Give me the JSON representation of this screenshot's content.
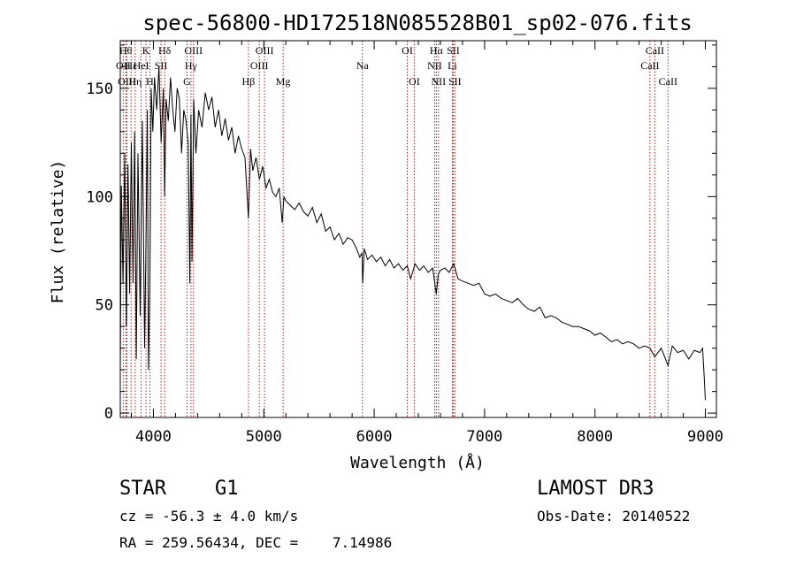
{
  "chart_data": {
    "type": "line",
    "title": "spec-56800-HD172518N085528B01_sp02-076.fits",
    "xlabel": "Wavelength (Å)",
    "ylabel": "Flux (relative)",
    "xlim": [
      3700,
      9100
    ],
    "ylim": [
      -2,
      172
    ],
    "xticks": [
      4000,
      5000,
      6000,
      7000,
      8000,
      9000
    ],
    "xtick_labels": [
      "4000",
      "5000",
      "6000",
      "7000",
      "8000",
      "9000"
    ],
    "yticks": [
      0,
      50,
      100,
      150
    ],
    "ytick_labels": [
      "0",
      "50",
      "100",
      "150"
    ],
    "series": [
      {
        "name": "spectrum",
        "x": [
          3700,
          3710,
          3725,
          3740,
          3755,
          3770,
          3785,
          3800,
          3815,
          3830,
          3845,
          3860,
          3880,
          3900,
          3920,
          3933,
          3945,
          3955,
          3968,
          3980,
          3995,
          4010,
          4030,
          4050,
          4070,
          4090,
          4102,
          4115,
          4135,
          4155,
          4175,
          4195,
          4215,
          4235,
          4255,
          4275,
          4295,
          4315,
          4330,
          4340,
          4350,
          4365,
          4385,
          4410,
          4440,
          4470,
          4500,
          4530,
          4560,
          4590,
          4620,
          4650,
          4680,
          4710,
          4740,
          4770,
          4800,
          4830,
          4861,
          4880,
          4900,
          4930,
          4960,
          4990,
          5020,
          5050,
          5080,
          5110,
          5140,
          5167,
          5183,
          5200,
          5240,
          5280,
          5320,
          5360,
          5400,
          5440,
          5480,
          5520,
          5560,
          5600,
          5640,
          5680,
          5720,
          5760,
          5800,
          5840,
          5870,
          5890,
          5896,
          5910,
          5940,
          5980,
          6020,
          6060,
          6100,
          6140,
          6180,
          6220,
          6260,
          6300,
          6330,
          6370,
          6410,
          6450,
          6490,
          6530,
          6563,
          6580,
          6600,
          6640,
          6680,
          6720,
          6760,
          6800,
          6850,
          6900,
          6950,
          7000,
          7050,
          7100,
          7150,
          7200,
          7250,
          7300,
          7350,
          7400,
          7450,
          7500,
          7550,
          7600,
          7650,
          7700,
          7750,
          7800,
          7850,
          7900,
          7950,
          8000,
          8050,
          8100,
          8150,
          8200,
          8250,
          8300,
          8350,
          8400,
          8450,
          8498,
          8542,
          8600,
          8662,
          8700,
          8750,
          8800,
          8850,
          8900,
          8950,
          8975,
          8990,
          9000
        ],
        "y": [
          20,
          105,
          60,
          120,
          40,
          115,
          55,
          125,
          60,
          130,
          25,
          120,
          45,
          135,
          30,
          80,
          140,
          20,
          60,
          150,
          130,
          155,
          140,
          160,
          125,
          150,
          100,
          145,
          135,
          155,
          140,
          130,
          150,
          145,
          120,
          140,
          135,
          125,
          60,
          138,
          70,
          145,
          120,
          140,
          132,
          148,
          140,
          146,
          132,
          140,
          128,
          136,
          126,
          132,
          120,
          128,
          122,
          118,
          90,
          122,
          112,
          118,
          108,
          114,
          104,
          108,
          102,
          100,
          104,
          88,
          100,
          98,
          96,
          94,
          97,
          93,
          91,
          95,
          88,
          92,
          84,
          86,
          80,
          83,
          78,
          81,
          80,
          76,
          72,
          74,
          60,
          76,
          71,
          73,
          70,
          72,
          68,
          71,
          67,
          69,
          66,
          68,
          62,
          69,
          66,
          68,
          65,
          67,
          55,
          64,
          66,
          67,
          65,
          69,
          62,
          61,
          60,
          59,
          60,
          55,
          54,
          55,
          53,
          52,
          51,
          53,
          50,
          48,
          47,
          49,
          44,
          45,
          44,
          42,
          41,
          40,
          40,
          39,
          38,
          36,
          37,
          35,
          33,
          34,
          32,
          33,
          32,
          30,
          31,
          30,
          26,
          30,
          22,
          31,
          28,
          29,
          25,
          29,
          28,
          30,
          16,
          6
        ]
      }
    ],
    "line_markers": [
      {
        "label": "Hθ",
        "x": 3750,
        "row": 0
      },
      {
        "label": "OII",
        "x": 3727,
        "row": 1
      },
      {
        "label": "OIII",
        "x": 3760,
        "row": 2
      },
      {
        "label": "Hε",
        "x": 3798,
        "row": 1
      },
      {
        "label": "Hη",
        "x": 3835,
        "row": 2
      },
      {
        "label": "HeI",
        "x": 3889,
        "row": 1
      },
      {
        "label": "K",
        "x": 3933,
        "row": 0
      },
      {
        "label": "H",
        "x": 3968,
        "row": 2
      },
      {
        "label": "SII",
        "x": 4069,
        "row": 1
      },
      {
        "label": "Hδ",
        "x": 4102,
        "row": 0
      },
      {
        "label": "OIII",
        "x": 4363,
        "row": 0
      },
      {
        "label": "Hγ",
        "x": 4340,
        "row": 1
      },
      {
        "label": "G",
        "x": 4305,
        "row": 2
      },
      {
        "label": "Hβ",
        "x": 4861,
        "row": 2
      },
      {
        "label": "OIII",
        "x": 5007,
        "row": 0
      },
      {
        "label": "OIII",
        "x": 4959,
        "row": 1
      },
      {
        "label": "Mg",
        "x": 5175,
        "row": 2
      },
      {
        "label": "Na",
        "x": 5893,
        "row": 1
      },
      {
        "label": "OI",
        "x": 6300,
        "row": 0
      },
      {
        "label": "OI",
        "x": 6363,
        "row": 2
      },
      {
        "label": "Hα",
        "x": 6563,
        "row": 0
      },
      {
        "label": "NII",
        "x": 6548,
        "row": 1
      },
      {
        "label": "NII",
        "x": 6583,
        "row": 2
      },
      {
        "label": "SII",
        "x": 6716,
        "row": 0
      },
      {
        "label": "Li",
        "x": 6708,
        "row": 1
      },
      {
        "label": "SII",
        "x": 6731,
        "row": 2
      },
      {
        "label": "CaII",
        "x": 8542,
        "row": 0
      },
      {
        "label": "CaII",
        "x": 8498,
        "row": 1
      },
      {
        "label": "CaII",
        "x": 8662,
        "row": 2
      }
    ]
  },
  "info": {
    "class_label": "STAR",
    "subclass_label": "G1",
    "survey": "LAMOST DR3",
    "cz": "cz = -56.3 ± 4.0 km/s",
    "obs_date": "Obs-Date: 20140522",
    "coords": "RA = 259.56434, DEC =    7.14986"
  }
}
